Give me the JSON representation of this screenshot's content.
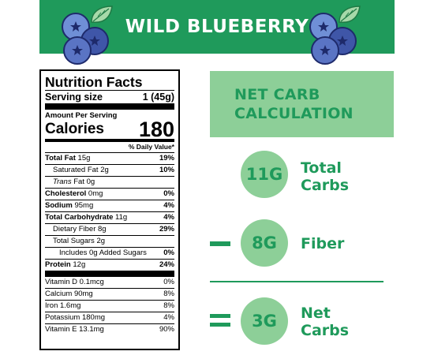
{
  "banner": {
    "title": "WILD BLUEBERRY"
  },
  "colors": {
    "brand_green": "#1f9a5b",
    "light_green": "#8dcf98",
    "blueberry": "#3f56a8",
    "blueberry_light": "#6f8fd6"
  },
  "icons": {
    "left": "blueberry-cluster-icon",
    "right": "blueberry-cluster-icon"
  },
  "nutrition": {
    "title": "Nutrition Facts",
    "serving_label": "Serving size",
    "serving_value": "1 (45g)",
    "amount_per_serving": "Amount Per Serving",
    "calories_label": "Calories",
    "calories_value": "180",
    "daily_value_header": "% Daily Value*",
    "rows": [
      {
        "label": "Total Fat",
        "amount": "15g",
        "dv": "19%"
      },
      {
        "label": "Saturated Fat",
        "amount": "2g",
        "dv": "10%"
      },
      {
        "label_italic": "Trans",
        "label": " Fat",
        "amount": "0g",
        "dv": ""
      },
      {
        "label": "Cholesterol",
        "amount": "0mg",
        "dv": "0%"
      },
      {
        "label": "Sodium",
        "amount": "95mg",
        "dv": "4%"
      },
      {
        "label": "Total Carbohydrate",
        "amount": "11g",
        "dv": "4%"
      },
      {
        "label": "Dietary Fiber",
        "amount": "8g",
        "dv": "29%"
      },
      {
        "label": "Total Sugars",
        "amount": "2g",
        "dv": ""
      },
      {
        "label": "Includes 0g Added Sugars",
        "amount": "",
        "dv": "0%"
      },
      {
        "label": "Protein",
        "amount": "12g",
        "dv": "24%"
      }
    ],
    "vitamins": [
      {
        "label": "Vitamin D 0.1mcg",
        "dv": "0%"
      },
      {
        "label": "Calcium 90mg",
        "dv": "8%"
      },
      {
        "label": "Iron 1.6mg",
        "dv": "8%"
      },
      {
        "label": "Potassium 180mg",
        "dv": "4%"
      },
      {
        "label": "Vitamin E 13.1mg",
        "dv": "90%"
      }
    ]
  },
  "net_carb": {
    "title_line1": "NET CARB",
    "title_line2": "CALCULATION",
    "total": {
      "value": "11G",
      "label_line1": "Total",
      "label_line2": "Carbs"
    },
    "fiber": {
      "value": "8G",
      "label": "Fiber"
    },
    "net": {
      "value": "3G",
      "label_line1": "Net",
      "label_line2": "Carbs"
    }
  }
}
